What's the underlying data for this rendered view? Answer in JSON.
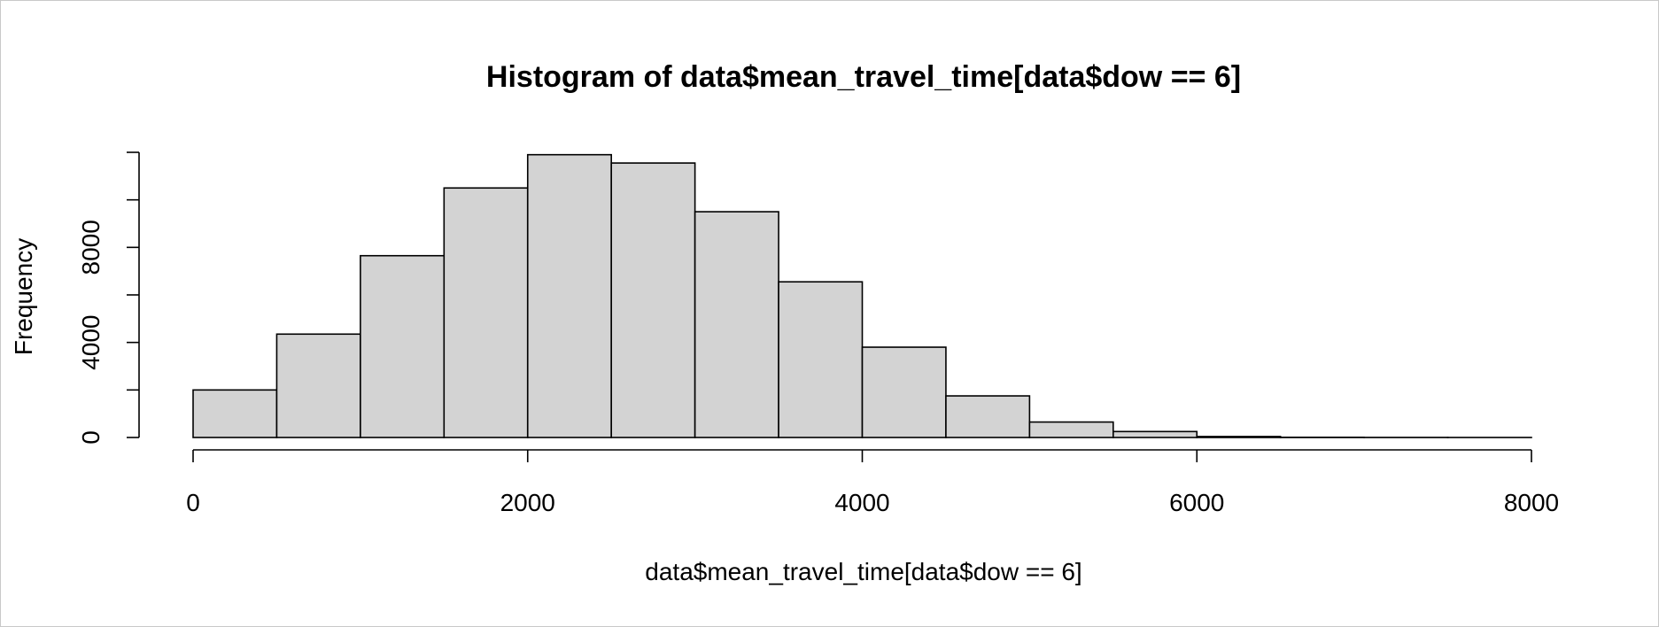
{
  "chart_data": {
    "type": "bar",
    "title": "Histogram of data$mean_travel_time[data$dow == 6]",
    "xlabel": "data$mean_travel_time[data$dow == 6]",
    "ylabel": "Frequency",
    "xlim": [
      0,
      8000
    ],
    "ylim": [
      0,
      12000
    ],
    "grid": false,
    "bar_fill": "#d3d3d3",
    "bar_stroke": "#000000",
    "bin_width": 500,
    "bins": [
      {
        "x0": 0,
        "x1": 500,
        "value": 2000
      },
      {
        "x0": 500,
        "x1": 1000,
        "value": 4350
      },
      {
        "x0": 1000,
        "x1": 1500,
        "value": 7650
      },
      {
        "x0": 1500,
        "x1": 2000,
        "value": 10500
      },
      {
        "x0": 2000,
        "x1": 2500,
        "value": 11900
      },
      {
        "x0": 2500,
        "x1": 3000,
        "value": 11550
      },
      {
        "x0": 3000,
        "x1": 3500,
        "value": 9500
      },
      {
        "x0": 3500,
        "x1": 4000,
        "value": 6550
      },
      {
        "x0": 4000,
        "x1": 4500,
        "value": 3800
      },
      {
        "x0": 4500,
        "x1": 5000,
        "value": 1750
      },
      {
        "x0": 5000,
        "x1": 5500,
        "value": 650
      },
      {
        "x0": 5500,
        "x1": 6000,
        "value": 250
      },
      {
        "x0": 6000,
        "x1": 6500,
        "value": 40
      },
      {
        "x0": 6500,
        "x1": 7000,
        "value": 8
      },
      {
        "x0": 7000,
        "x1": 7500,
        "value": 3
      },
      {
        "x0": 7500,
        "x1": 8000,
        "value": 1
      }
    ],
    "x_ticks": [
      0,
      2000,
      4000,
      6000,
      8000
    ],
    "x_tick_labels": [
      "0",
      "2000",
      "4000",
      "6000",
      "8000"
    ],
    "y_ticks": [
      0,
      2000,
      4000,
      6000,
      8000,
      10000,
      12000
    ],
    "y_tick_labels": [
      "0",
      "4000",
      "8000"
    ],
    "y_labeled_values": [
      0,
      4000,
      8000
    ]
  }
}
